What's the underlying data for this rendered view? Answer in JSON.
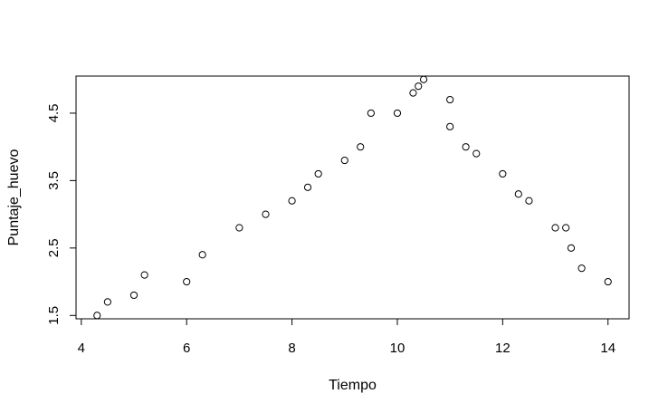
{
  "chart_data": {
    "type": "scatter",
    "title": "",
    "xlabel": "Tiempo",
    "ylabel": "Puntaje_huevo",
    "xlim": [
      3.9,
      14.4
    ],
    "ylim": [
      1.45,
      5.05
    ],
    "xticks": [
      4,
      6,
      8,
      10,
      12,
      14
    ],
    "yticks": [
      1.5,
      2.5,
      3.5,
      4.5
    ],
    "xtick_labels": [
      "4",
      "6",
      "8",
      "10",
      "12",
      "14"
    ],
    "ytick_labels": [
      "1.5",
      "2.5",
      "3.5",
      "4.5"
    ],
    "grid": false,
    "marker": "open-circle",
    "points": [
      {
        "x": 4.3,
        "y": 1.5
      },
      {
        "x": 4.5,
        "y": 1.7
      },
      {
        "x": 5.0,
        "y": 1.8
      },
      {
        "x": 5.2,
        "y": 2.1
      },
      {
        "x": 6.0,
        "y": 2.0
      },
      {
        "x": 6.3,
        "y": 2.4
      },
      {
        "x": 7.0,
        "y": 2.8
      },
      {
        "x": 7.5,
        "y": 3.0
      },
      {
        "x": 8.0,
        "y": 3.2
      },
      {
        "x": 8.3,
        "y": 3.4
      },
      {
        "x": 8.5,
        "y": 3.6
      },
      {
        "x": 9.0,
        "y": 3.8
      },
      {
        "x": 9.3,
        "y": 4.0
      },
      {
        "x": 9.5,
        "y": 4.5
      },
      {
        "x": 10.0,
        "y": 4.5
      },
      {
        "x": 10.3,
        "y": 4.8
      },
      {
        "x": 10.4,
        "y": 4.9
      },
      {
        "x": 10.5,
        "y": 5.0
      },
      {
        "x": 11.0,
        "y": 4.7
      },
      {
        "x": 11.0,
        "y": 4.3
      },
      {
        "x": 11.3,
        "y": 4.0
      },
      {
        "x": 11.5,
        "y": 3.9
      },
      {
        "x": 12.0,
        "y": 3.6
      },
      {
        "x": 12.3,
        "y": 3.3
      },
      {
        "x": 12.5,
        "y": 3.2
      },
      {
        "x": 13.0,
        "y": 2.8
      },
      {
        "x": 13.2,
        "y": 2.8
      },
      {
        "x": 13.3,
        "y": 2.5
      },
      {
        "x": 13.5,
        "y": 2.2
      },
      {
        "x": 14.0,
        "y": 2.0
      }
    ]
  }
}
